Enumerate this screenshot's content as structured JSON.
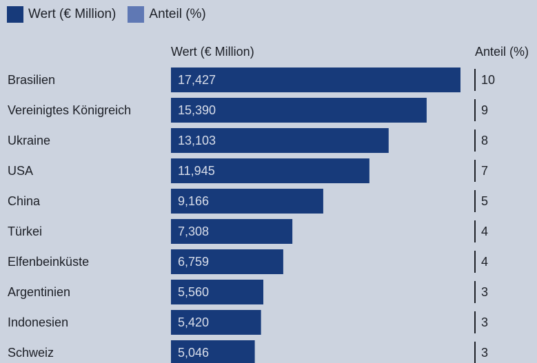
{
  "legend": {
    "items": [
      {
        "label": "Wert (€ Million)",
        "color": "#173a7a"
      },
      {
        "label": "Anteil (%)",
        "color": "#5f78b4"
      }
    ]
  },
  "headers": {
    "value": "Wert (€ Million)",
    "share": "Anteil (%)"
  },
  "chart_data": {
    "type": "bar",
    "orientation": "horizontal",
    "categories": [
      "Brasilien",
      "Vereinigtes Königreich",
      "Ukraine",
      "USA",
      "China",
      "Türkei",
      "Elfenbeinküste",
      "Argentinien",
      "Indonesien",
      "Schweiz"
    ],
    "series": [
      {
        "name": "Wert (€ Million)",
        "values": [
          17.427,
          15.39,
          13.103,
          11.945,
          9.166,
          7.308,
          6.759,
          5.56,
          5.42,
          5.046
        ],
        "labels": [
          "17,427",
          "15,390",
          "13,103",
          "11,945",
          "9,166",
          "7,308",
          "6,759",
          "5,560",
          "5,420",
          "5,046"
        ]
      },
      {
        "name": "Anteil (%)",
        "values": [
          10,
          9,
          8,
          7,
          5,
          4,
          4,
          3,
          3,
          3
        ],
        "labels": [
          "10",
          "9",
          "8",
          "7",
          "5",
          "4",
          "4",
          "3",
          "3",
          "3"
        ]
      }
    ],
    "colors": {
      "value_bar": "#173a7a",
      "share_bar": "#1c1f26"
    },
    "legend_position": "top-left",
    "grid": false
  }
}
